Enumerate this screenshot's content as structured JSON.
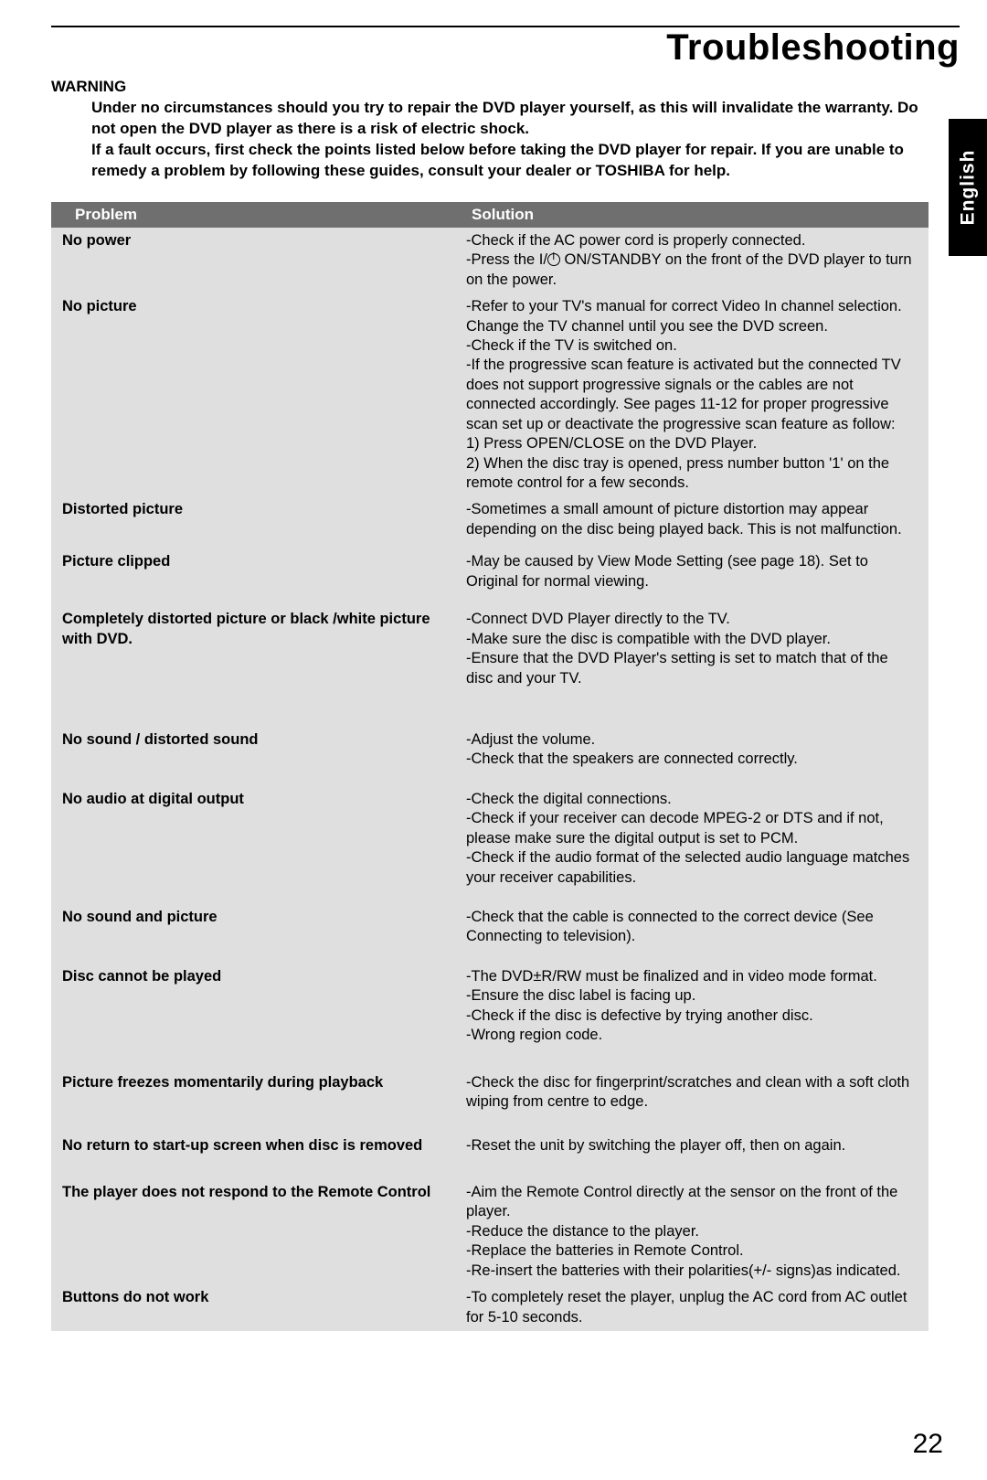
{
  "title": "Troubleshooting",
  "lang_tab": "English",
  "page_number": "22",
  "warning": {
    "label": "WARNING",
    "text": "Under no circumstances should you try to repair the DVD player yourself, as this will invalidate the warranty. Do not open the DVD player as there is a risk of electric shock.\nIf a fault occurs, first check the points listed below before taking the DVD player for repair. If you are unable to remedy a problem by following these guides, consult your dealer or TOSHIBA for help."
  },
  "table": {
    "header": {
      "problem": "Problem",
      "solution": "Solution"
    },
    "header_bg": "#6f6f6f",
    "header_fg": "#ffffff",
    "body_bg": "#dfdfdf",
    "rows": [
      {
        "problem": "No power",
        "solution": "-Check if the AC power cord is properly connected.\n-Press the I/⏻ ON/STANDBY on the front of the DVD player to turn on the power.",
        "gap_after": 0
      },
      {
        "problem": "No picture",
        "solution": "-Refer to your TV's manual for correct Video In channel selection. Change the TV channel until you see the DVD screen.\n-Check if the TV is switched on.\n-If the progressive scan feature is activated but the connected TV does not support progressive signals or the cables are not connected accordingly. See pages 11-12 for proper progressive scan set up or deactivate the progressive scan feature as follow:\n1) Press OPEN/CLOSE on the DVD Player.\n2) When the disc tray is opened, press number button '1' on the remote control for a few seconds.",
        "gap_after": 0
      },
      {
        "problem": "Distorted picture",
        "solution": "-Sometimes a small amount of picture distortion may appear depending on the disc being played back. This is not malfunction.",
        "gap_after": 6
      },
      {
        "problem": "Picture clipped",
        "solution": "-May be caused by View Mode Setting (see page 18). Set to Original for normal viewing.",
        "gap_after": 12
      },
      {
        "problem": "Completely distorted picture or black /white picture with DVD.",
        "solution": "-Connect DVD Player directly to the TV.\n-Make sure the disc is compatible with the DVD player.\n-Ensure that the DVD Player's setting is set to match that of the disc and your TV.",
        "gap_after": 38
      },
      {
        "problem": "No sound / distorted sound",
        "solution": "-Adjust the volume.\n-Check that the speakers are connected correctly.",
        "gap_after": 14
      },
      {
        "problem": "No audio at digital output",
        "solution": "-Check the digital connections.\n-Check if your receiver can decode MPEG-2 or DTS and if not, please make sure the digital output is set to PCM.\n-Check if the audio format of the selected audio language matches your receiver capabilities.",
        "gap_after": 14
      },
      {
        "problem": "No sound and picture",
        "solution": "-Check that the cable is connected to the correct device (See Connecting to television).",
        "gap_after": 14
      },
      {
        "problem": "Disc cannot be played",
        "solution": "-The DVD±R/RW must be finalized and in video mode format.\n-Ensure the disc label is facing up.\n-Check if the disc is defective by trying another disc.\n-Wrong region code.",
        "gap_after": 22
      },
      {
        "problem": "Picture freezes momentarily during playback",
        "solution": "-Check the disc for fingerprint/scratches and clean with a soft cloth wiping from centre to edge.",
        "gap_after": 18
      },
      {
        "problem": "No return to start-up screen when disc is removed",
        "solution": "-Reset the unit by switching the player off, then on again.",
        "gap_after": 22
      },
      {
        "problem": "The player does not respond to the Remote Control",
        "solution": "-Aim the Remote Control directly at the sensor on the front of the player.\n-Reduce the distance to the player.\n-Replace the batteries in Remote Control.\n-Re-insert the batteries with their polarities(+/- signs)as indicated.",
        "gap_after": 0
      },
      {
        "problem": "Buttons do not work",
        "solution": "-To completely reset the player, unplug the AC cord from AC outlet for 5-10 seconds.",
        "gap_after": 0
      }
    ]
  }
}
